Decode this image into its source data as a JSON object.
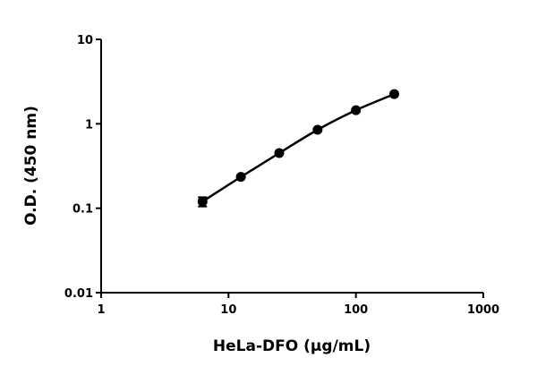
{
  "chart_data": {
    "type": "scatter",
    "title": "",
    "xlabel": "HeLa-DFO (µg/mL)",
    "ylabel": "O.D. (450 nm)",
    "xscale": "log",
    "yscale": "log",
    "xlim": [
      1,
      1000
    ],
    "ylim": [
      0.01,
      10
    ],
    "xticks": [
      "1",
      "10",
      "100",
      "1000"
    ],
    "yticks": [
      "0.01",
      "0.1",
      "1",
      "10"
    ],
    "grid": false,
    "legend": "none",
    "series": [
      {
        "x": [
          6.25,
          12.5,
          25,
          50,
          100,
          200
        ],
        "y": [
          0.12,
          0.235,
          0.45,
          0.85,
          1.45,
          2.25
        ],
        "error": [
          0.015,
          0.01,
          0.01,
          0.02,
          0.03,
          0.04
        ],
        "color": "#000000",
        "fit_line": true
      }
    ]
  }
}
